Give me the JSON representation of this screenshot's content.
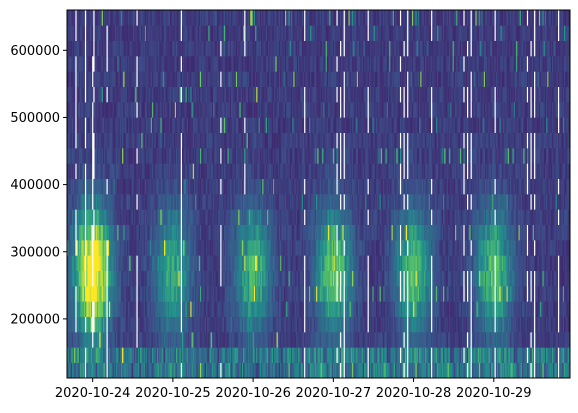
{
  "chart_data": {
    "type": "heatmap",
    "title": "",
    "xlabel": "",
    "ylabel": "",
    "colormap": "viridis",
    "colormap_stops": [
      "#440154",
      "#3b528b",
      "#21918c",
      "#5ec962",
      "#fde725"
    ],
    "x_ticks": [
      "2020-10-24",
      "2020-10-25",
      "2020-10-26",
      "2020-10-27",
      "2020-10-28",
      "2020-10-29"
    ],
    "x_range": [
      "2020-10-23",
      "2020-10-30"
    ],
    "y_ticks": [
      200000,
      300000,
      400000,
      500000,
      600000
    ],
    "y_tick_labels": [
      "200000",
      "300000",
      "400000",
      "500000",
      "600000"
    ],
    "ylim": [
      112000,
      660000
    ],
    "n_columns": 420,
    "n_rows": 24,
    "daily_activity_band": {
      "center_days": [
        "2020-10-24",
        "2020-10-25",
        "2020-10-26",
        "2020-10-27",
        "2020-10-28",
        "2020-10-29"
      ],
      "center_y": 270000,
      "half_height": 90000,
      "peak_intensity": [
        1.0,
        0.45,
        0.5,
        0.6,
        0.55,
        0.55
      ]
    },
    "low_band_activity": {
      "y_range": [
        112000,
        160000
      ],
      "intensity": 0.4
    },
    "background_intensity": 0.12,
    "grid": false,
    "legend": "none"
  }
}
